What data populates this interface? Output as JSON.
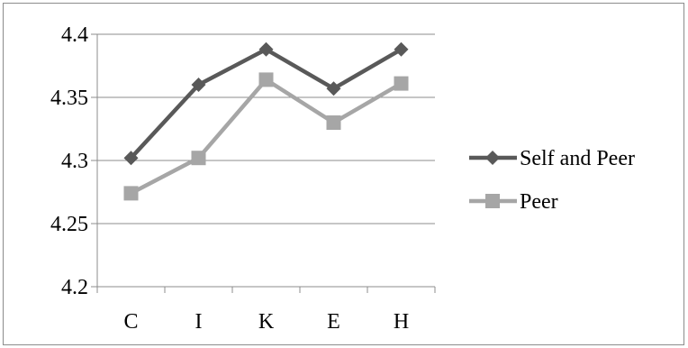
{
  "chart_data": {
    "type": "line",
    "title": "",
    "xlabel": "",
    "ylabel": "",
    "categories": [
      "C",
      "I",
      "K",
      "E",
      "H"
    ],
    "ylim": [
      4.2,
      4.4
    ],
    "yticks": [
      "4.2",
      "4.25",
      "4.3",
      "4.35",
      "4.4"
    ],
    "grid": "horizontal",
    "legend_position": "right",
    "series": [
      {
        "name": "Self and Peer",
        "color": "#595959",
        "marker": "diamond",
        "values": [
          4.302,
          4.36,
          4.388,
          4.357,
          4.388
        ]
      },
      {
        "name": "Peer",
        "color": "#a6a6a6",
        "marker": "square",
        "values": [
          4.274,
          4.302,
          4.364,
          4.33,
          4.361
        ]
      }
    ]
  }
}
